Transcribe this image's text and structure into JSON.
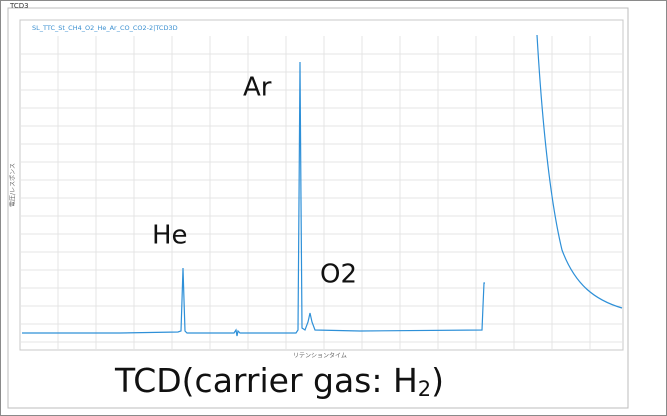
{
  "window_title": "TCD3",
  "legend": "SL_TTC_St_CH4_O2_He_Ar_CO_CO2-2|TCD3D",
  "y_axis_label": "電圧/レスポンス",
  "x_axis_label": "リテンションタイム",
  "annotations": [
    "He",
    "Ar",
    "O2"
  ],
  "caption": {
    "text": "TCD(carrier gas: H",
    "subscript": "2",
    "suffix": ")"
  }
}
